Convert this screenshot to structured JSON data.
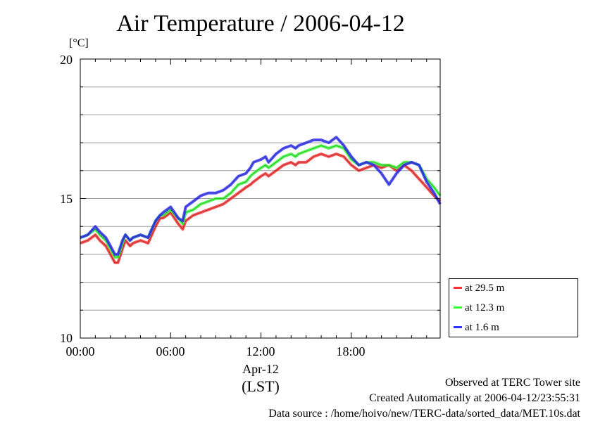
{
  "chart_data": {
    "type": "line",
    "title": "Air Temperature / 2006-04-12",
    "ylabel": "[°C]",
    "xlabel": "(LST)",
    "date_label": "Apr-12",
    "ylim": [
      10,
      20
    ],
    "xlim": [
      0,
      23.9
    ],
    "yticks": [
      10,
      15,
      20
    ],
    "ytick_labels": [
      "10",
      "15",
      "20"
    ],
    "xticks": [
      0,
      6,
      12,
      18
    ],
    "xtick_labels": [
      "00:00",
      "06:00",
      "12:00",
      "18:00"
    ],
    "grid_y_step": 1,
    "grid": true,
    "legend_placement": "bottom-right outside",
    "series": [
      {
        "name": "at 29.5 m",
        "color": "#ff3333",
        "x": [
          0,
          0.5,
          1,
          1.3,
          1.7,
          2,
          2.3,
          2.5,
          2.8,
          3,
          3.3,
          3.5,
          4,
          4.5,
          5,
          5.3,
          5.5,
          6,
          6.5,
          6.8,
          7,
          7.5,
          8,
          8.5,
          9,
          9.5,
          10,
          10.5,
          11,
          11.3,
          11.5,
          12,
          12.3,
          12.5,
          13,
          13.5,
          14,
          14.3,
          14.5,
          15,
          15.5,
          16,
          16.5,
          17,
          17.5,
          18,
          18.5,
          19,
          19.5,
          20,
          20.5,
          21,
          21.5,
          22,
          22.5,
          23,
          23.5,
          23.9
        ],
        "y": [
          13.4,
          13.5,
          13.7,
          13.5,
          13.3,
          13.0,
          12.7,
          12.7,
          13.2,
          13.5,
          13.3,
          13.4,
          13.5,
          13.4,
          14.0,
          14.3,
          14.3,
          14.5,
          14.1,
          13.9,
          14.2,
          14.4,
          14.5,
          14.6,
          14.7,
          14.8,
          15.0,
          15.2,
          15.4,
          15.5,
          15.6,
          15.8,
          15.9,
          15.8,
          16.0,
          16.2,
          16.3,
          16.2,
          16.3,
          16.3,
          16.5,
          16.6,
          16.5,
          16.6,
          16.5,
          16.2,
          16.0,
          16.1,
          16.2,
          16.1,
          16.2,
          16.0,
          16.2,
          16.0,
          15.7,
          15.4,
          15.1,
          14.9
        ]
      },
      {
        "name": "at 12.3 m",
        "color": "#33ff33",
        "x": [
          0,
          0.5,
          1,
          1.3,
          1.7,
          2,
          2.3,
          2.5,
          2.8,
          3,
          3.3,
          3.5,
          4,
          4.5,
          5,
          5.3,
          5.5,
          6,
          6.5,
          6.8,
          7,
          7.5,
          8,
          8.5,
          9,
          9.5,
          10,
          10.5,
          11,
          11.3,
          11.5,
          12,
          12.3,
          12.5,
          13,
          13.5,
          14,
          14.3,
          14.5,
          15,
          15.5,
          16,
          16.5,
          17,
          17.5,
          18,
          18.5,
          19,
          19.5,
          20,
          20.5,
          21,
          21.5,
          22,
          22.5,
          23,
          23.5,
          23.9
        ],
        "y": [
          13.6,
          13.7,
          13.9,
          13.7,
          13.5,
          13.2,
          12.9,
          12.9,
          13.4,
          13.7,
          13.5,
          13.6,
          13.7,
          13.6,
          14.2,
          14.4,
          14.4,
          14.6,
          14.3,
          14.1,
          14.5,
          14.6,
          14.8,
          14.9,
          15.0,
          15.0,
          15.2,
          15.5,
          15.6,
          15.8,
          15.9,
          16.1,
          16.2,
          16.1,
          16.3,
          16.5,
          16.6,
          16.5,
          16.6,
          16.7,
          16.8,
          16.9,
          16.8,
          16.9,
          16.8,
          16.4,
          16.2,
          16.3,
          16.3,
          16.2,
          16.2,
          16.1,
          16.3,
          16.3,
          16.2,
          15.7,
          15.4,
          15.1
        ]
      },
      {
        "name": "at 1.6 m",
        "color": "#3333ff",
        "x": [
          0,
          0.5,
          1,
          1.3,
          1.7,
          2,
          2.3,
          2.5,
          2.8,
          3,
          3.3,
          3.5,
          4,
          4.5,
          5,
          5.3,
          5.5,
          6,
          6.5,
          6.8,
          7,
          7.5,
          8,
          8.5,
          9,
          9.5,
          10,
          10.5,
          11,
          11.3,
          11.5,
          12,
          12.3,
          12.5,
          13,
          13.5,
          14,
          14.3,
          14.5,
          15,
          15.5,
          16,
          16.5,
          17,
          17.5,
          18,
          18.5,
          19,
          19.5,
          20,
          20.5,
          21,
          21.5,
          22,
          22.5,
          23,
          23.5,
          23.9
        ],
        "y": [
          13.6,
          13.7,
          14.0,
          13.8,
          13.6,
          13.3,
          13.0,
          13.0,
          13.5,
          13.7,
          13.5,
          13.6,
          13.7,
          13.6,
          14.2,
          14.4,
          14.5,
          14.7,
          14.3,
          14.2,
          14.7,
          14.9,
          15.1,
          15.2,
          15.2,
          15.3,
          15.5,
          15.8,
          15.9,
          16.1,
          16.3,
          16.4,
          16.5,
          16.3,
          16.6,
          16.8,
          16.9,
          16.8,
          16.9,
          17.0,
          17.1,
          17.1,
          17.0,
          17.2,
          16.9,
          16.5,
          16.2,
          16.3,
          16.2,
          15.9,
          15.5,
          15.9,
          16.2,
          16.3,
          16.2,
          15.6,
          15.2,
          14.8
        ]
      }
    ]
  },
  "footer": {
    "line1": "Observed at TERC Tower site",
    "line2": "Created Automatically at 2006-04-12/23:55:31",
    "line3": "Data source : /home/hoivo/new/TERC-data/sorted_data/MET.10s.dat"
  }
}
